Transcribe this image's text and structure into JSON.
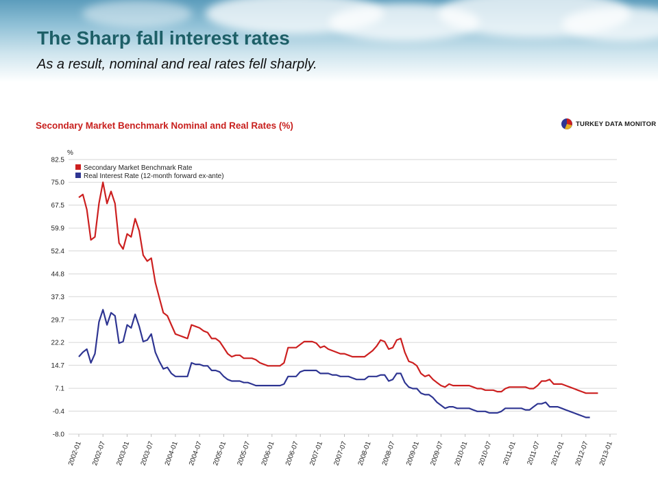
{
  "slide": {
    "title": "The Sharp fall interest rates",
    "subtitle": "As a result, nominal and real rates fell sharply."
  },
  "brand": {
    "logo_text": "TURKEY DATA MONITOR",
    "logo_icon": "globe-pie-icon"
  },
  "chart_data": {
    "type": "line",
    "title": "Secondary Market Benchmark Nominal and Real Rates (%)",
    "ylabel": "%",
    "xlabel": "",
    "ylim": [
      -8.0,
      82.5
    ],
    "yticks": [
      "82.5",
      "75.0",
      "67.5",
      "59.9",
      "52.4",
      "44.8",
      "37.3",
      "29.7",
      "22.2",
      "14.7",
      "7.1",
      "-0.4",
      "-8.0"
    ],
    "xticks": [
      "2002-01",
      "2002-07",
      "2003-01",
      "2003-07",
      "2004-01",
      "2004-07",
      "2005-01",
      "2005-07",
      "2006-01",
      "2006-07",
      "2007-01",
      "2007-07",
      "2008-01",
      "2008-07",
      "2009-01",
      "2009-07",
      "2010-01",
      "2010-07",
      "2011-01",
      "2011-07",
      "2012-01",
      "2012-07",
      "2013-01"
    ],
    "grid": true,
    "legend": "top-left",
    "x_start": "2002-01",
    "x_step": "monthly",
    "series": [
      {
        "name": "Secondary Market Benchmark Rate",
        "color": "#cc1f1f",
        "values": [
          70,
          71,
          66,
          56,
          57,
          68,
          75,
          68,
          72,
          68,
          55,
          53,
          58,
          57,
          63,
          59,
          51,
          49,
          50,
          42,
          37,
          32,
          31,
          28,
          25,
          24.5,
          24,
          23.5,
          28,
          27.5,
          27,
          26,
          25.5,
          23.5,
          23.5,
          22.5,
          20.5,
          18.5,
          17.5,
          18,
          18,
          17,
          17,
          17,
          16.5,
          15.5,
          15,
          14.5,
          14.5,
          14.5,
          14.5,
          15.5,
          20.5,
          20.5,
          20.5,
          21.5,
          22.5,
          22.5,
          22.5,
          22,
          20.5,
          21,
          20,
          19.5,
          19,
          18.5,
          18.5,
          18,
          17.5,
          17.5,
          17.5,
          17.5,
          18.5,
          19.5,
          21,
          23,
          22.5,
          20,
          20.5,
          23,
          23.5,
          19,
          16,
          15.5,
          14.5,
          12,
          11,
          11.5,
          10,
          9,
          8,
          7.5,
          8.5,
          8,
          8,
          8,
          8,
          8,
          7.5,
          7,
          7,
          6.5,
          6.5,
          6.5,
          6,
          6,
          7,
          7.5,
          7.5,
          7.5,
          7.5,
          7.5,
          7,
          7,
          8,
          9.5,
          9.5,
          10,
          8.5,
          8.5,
          8.5,
          8,
          7.5,
          7,
          6.5,
          6,
          5.5,
          5.5,
          5.5,
          5.5
        ],
        "note": "approx. monthly readings from 2002-01"
      },
      {
        "name": "Real Interest Rate (12-month forward ex-ante)",
        "color": "#2e3592",
        "values": [
          17.5,
          19,
          20,
          15.5,
          18.5,
          29,
          33,
          28,
          32,
          31,
          22,
          22.5,
          28,
          27,
          31.5,
          27.5,
          22.5,
          23,
          25,
          19,
          16,
          13.5,
          14,
          12,
          11,
          11,
          11,
          11,
          15.5,
          15,
          15,
          14.5,
          14.5,
          13,
          13,
          12.5,
          11,
          10,
          9.5,
          9.5,
          9.5,
          9,
          9,
          8.5,
          8,
          8,
          8,
          8,
          8,
          8,
          8,
          8.5,
          11,
          11,
          11,
          12.5,
          13,
          13,
          13,
          13,
          12,
          12,
          12,
          11.5,
          11.5,
          11,
          11,
          11,
          10.5,
          10,
          10,
          10,
          11,
          11,
          11,
          11.5,
          11.5,
          9.5,
          10,
          12,
          12,
          9,
          7.5,
          7,
          7,
          5.5,
          5,
          5,
          4,
          2.5,
          1.5,
          0.5,
          1,
          1,
          0.5,
          0.5,
          0.5,
          0.5,
          0,
          -0.5,
          -0.5,
          -0.5,
          -1,
          -1,
          -1,
          -0.5,
          0.5,
          0.5,
          0.5,
          0.5,
          0.5,
          0,
          0,
          1,
          2,
          2,
          2.5,
          1,
          1,
          1,
          0.5,
          0,
          -0.5,
          -1,
          -1.5,
          -2,
          -2.5,
          -2.5
        ],
        "note": "approx. monthly readings from 2002-01"
      }
    ]
  }
}
